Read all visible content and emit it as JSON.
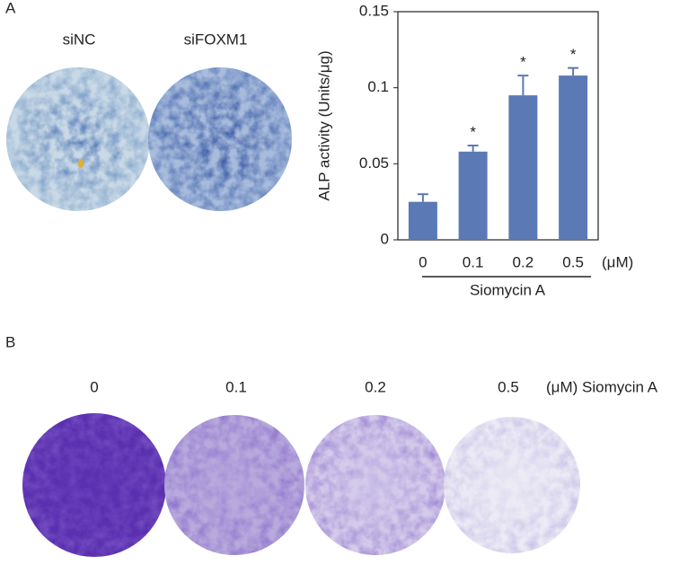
{
  "panel_a": {
    "label": "A",
    "wells": [
      "siNC",
      "siFOXM1"
    ]
  },
  "chart_data": {
    "type": "bar",
    "categories": [
      "0",
      "0.1",
      "0.2",
      "0.5"
    ],
    "values": [
      0.025,
      0.058,
      0.095,
      0.108
    ],
    "errors": [
      0.005,
      0.004,
      0.013,
      0.005
    ],
    "annotations": [
      null,
      "*",
      "*",
      "*"
    ],
    "unit": "(μM)",
    "xlabel": "Siomycin A",
    "ylabel": "ALP activity (Units/μg)",
    "ylim": [
      0,
      0.15
    ],
    "yticks": [
      0,
      0.05,
      0.1,
      0.15
    ],
    "color": "#5b79b5"
  },
  "panel_b": {
    "label": "B",
    "doses": [
      "0",
      "0.1",
      "0.2",
      "0.5"
    ],
    "unit": "(μM) Siomycin A"
  }
}
